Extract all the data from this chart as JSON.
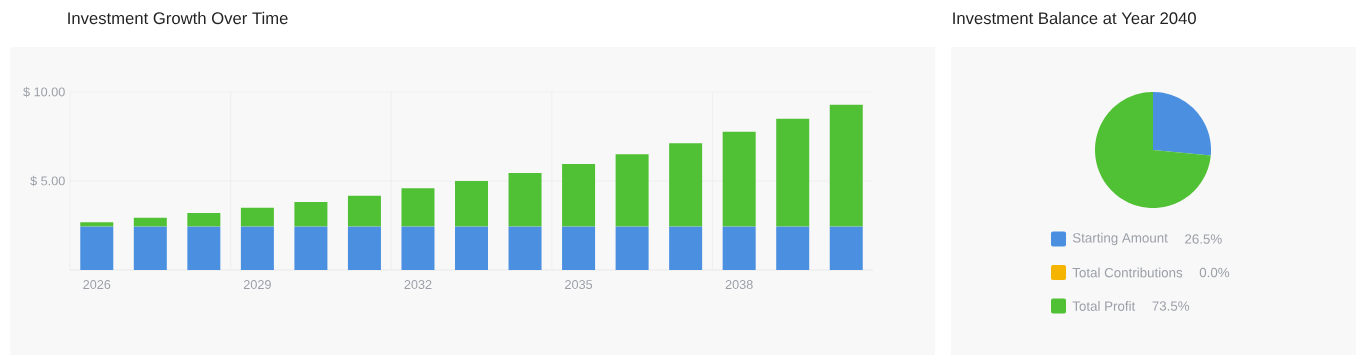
{
  "chart_data": [
    {
      "type": "bar",
      "title": "Investment Growth Over Time",
      "categories": [
        "2026",
        null,
        null,
        "2029",
        null,
        null,
        "2032",
        null,
        null,
        "2035",
        null,
        null,
        "2038",
        null,
        null
      ],
      "stacked": true,
      "series": [
        {
          "color": "#4a8fe0",
          "values": [
            2.45,
            2.45,
            2.45,
            2.45,
            2.45,
            2.45,
            2.45,
            2.45,
            2.45,
            2.45,
            2.45,
            2.45,
            2.45,
            2.45,
            2.45
          ]
        },
        {
          "color": "#50c034",
          "values": [
            0.23,
            0.49,
            0.75,
            1.05,
            1.37,
            1.72,
            2.14,
            2.55,
            3.0,
            3.51,
            4.05,
            4.67,
            5.32,
            6.05,
            6.84
          ]
        }
      ],
      "ylim": [
        0,
        10
      ],
      "yticks": [
        {
          "value": 5,
          "label": "$ 5.00"
        },
        {
          "value": 10,
          "label": "$ 10.00"
        }
      ],
      "grid": true
    },
    {
      "type": "pie",
      "title": "Investment Balance at Year 2040",
      "categories": [
        "Starting Amount",
        "Total Contributions",
        "Total Profit"
      ],
      "values": [
        26.5,
        0.0,
        73.5
      ],
      "colors": [
        "#4a8fe0",
        "#f4b400",
        "#50c034"
      ],
      "value_labels": [
        "26.5%",
        "0.0%",
        "73.5%"
      ],
      "legend": "bottom"
    }
  ]
}
